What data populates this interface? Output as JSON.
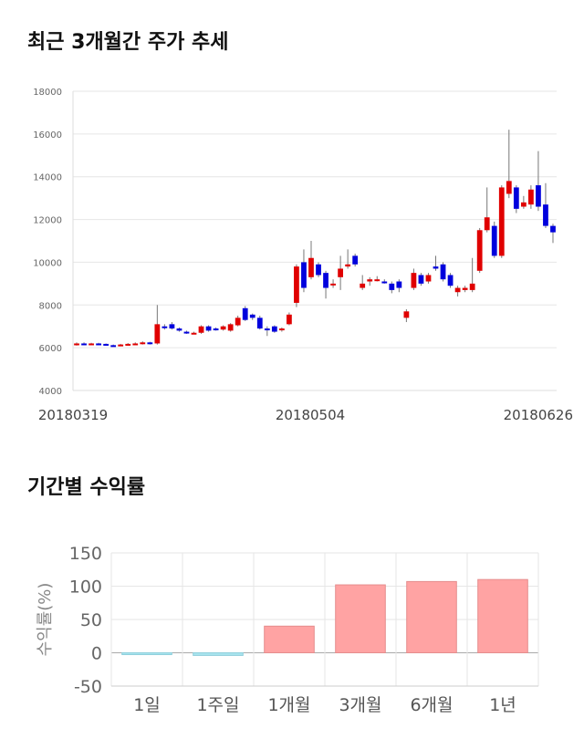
{
  "sections": {
    "price_title": "최근 3개월간 주가 추세",
    "returns_title": "기간별 수익률"
  },
  "chart_data": [
    {
      "type": "candlestick",
      "title": "최근 3개월간 주가 추세",
      "ylim": [
        4000,
        18000
      ],
      "y_ticks": [
        "18000",
        "16000",
        "14000",
        "12000",
        "10000",
        "8000",
        "6000",
        "4000"
      ],
      "x_ticks": [
        "20180319",
        "20180504",
        "20180626"
      ],
      "grid": true,
      "colors": {
        "up": "#e00000",
        "down": "#0000dd",
        "wick": "#777777"
      },
      "candles": [
        [
          6150,
          6200,
          6100,
          6250
        ],
        [
          6200,
          6180,
          6150,
          6250
        ],
        [
          6180,
          6200,
          6150,
          6230
        ],
        [
          6200,
          6180,
          6150,
          6230
        ],
        [
          6180,
          6120,
          6100,
          6200
        ],
        [
          6120,
          6100,
          6080,
          6150
        ],
        [
          6100,
          6150,
          6080,
          6180
        ],
        [
          6150,
          6180,
          6120,
          6220
        ],
        [
          6180,
          6200,
          6150,
          6250
        ],
        [
          6200,
          6250,
          6150,
          6300
        ],
        [
          6250,
          6200,
          6150,
          6280
        ],
        [
          6200,
          7100,
          6150,
          8000
        ],
        [
          7000,
          6950,
          6850,
          7100
        ],
        [
          7100,
          6900,
          6850,
          7200
        ],
        [
          6900,
          6800,
          6750,
          6950
        ],
        [
          6750,
          6700,
          6650,
          6800
        ],
        [
          6700,
          6700,
          6650,
          6750
        ],
        [
          6700,
          7000,
          6650,
          7050
        ],
        [
          7000,
          6800,
          6750,
          7050
        ],
        [
          6900,
          6850,
          6800,
          6950
        ],
        [
          6850,
          7000,
          6800,
          7050
        ],
        [
          6800,
          7100,
          6750,
          7150
        ],
        [
          7050,
          7400,
          7000,
          7500
        ],
        [
          7850,
          7300,
          7250,
          7950
        ],
        [
          7550,
          7400,
          7300,
          7600
        ],
        [
          7400,
          6900,
          6850,
          7500
        ],
        [
          6900,
          6850,
          6550,
          7000
        ],
        [
          7000,
          6750,
          6700,
          7050
        ],
        [
          6850,
          6900,
          6750,
          6950
        ],
        [
          7100,
          7550,
          7050,
          7650
        ],
        [
          8100,
          9800,
          7900,
          9900
        ],
        [
          10000,
          8800,
          8600,
          10600
        ],
        [
          9300,
          10200,
          9200,
          11000
        ],
        [
          9900,
          9400,
          9300,
          10000
        ],
        [
          9500,
          8800,
          8300,
          9600
        ],
        [
          9000,
          9000,
          8800,
          9200
        ],
        [
          9300,
          9700,
          8700,
          10300
        ],
        [
          9800,
          9900,
          9700,
          10600
        ],
        [
          10300,
          9900,
          9800,
          10400
        ],
        [
          8800,
          9000,
          8700,
          9400
        ],
        [
          9100,
          9200,
          8900,
          9300
        ],
        [
          9200,
          9200,
          9100,
          9350
        ],
        [
          9100,
          9050,
          9000,
          9200
        ],
        [
          9000,
          8700,
          8550,
          9100
        ],
        [
          9100,
          8800,
          8600,
          9200
        ],
        [
          7400,
          7700,
          7200,
          7800
        ],
        [
          8800,
          9500,
          8700,
          9700
        ],
        [
          9400,
          9000,
          8900,
          9500
        ],
        [
          9100,
          9400,
          9000,
          9500
        ],
        [
          9800,
          9700,
          9600,
          10300
        ],
        [
          9900,
          9200,
          9100,
          10000
        ],
        [
          9400,
          8900,
          8800,
          9500
        ],
        [
          8600,
          8800,
          8400,
          8900
        ],
        [
          8700,
          8800,
          8600,
          8900
        ],
        [
          8700,
          9000,
          8600,
          10200
        ],
        [
          9600,
          11500,
          9500,
          11600
        ],
        [
          11500,
          12100,
          11400,
          13500
        ],
        [
          11700,
          10300,
          10200,
          11900
        ],
        [
          10300,
          13500,
          10200,
          13600
        ],
        [
          13200,
          13800,
          13000,
          16200
        ],
        [
          13500,
          12500,
          12300,
          13600
        ],
        [
          12600,
          12800,
          12500,
          13100
        ],
        [
          12700,
          13400,
          12500,
          13600
        ],
        [
          13600,
          12600,
          12400,
          15200
        ],
        [
          12700,
          11700,
          11600,
          13700
        ],
        [
          11700,
          11400,
          10900,
          11800
        ]
      ]
    },
    {
      "type": "bar",
      "title": "기간별 수익률",
      "categories": [
        "1일",
        "1주일",
        "1개월",
        "3개월",
        "6개월",
        "1년"
      ],
      "values": [
        -1,
        -4,
        40,
        102,
        107,
        110
      ],
      "ylabel": "수익률(%)",
      "ylim": [
        -50,
        150
      ],
      "y_ticks": [
        "150",
        "100",
        "50",
        "0",
        "-50"
      ],
      "grid": true,
      "colors": {
        "positive": "#ffa3a3",
        "negative": "#a8e4ee"
      }
    }
  ]
}
